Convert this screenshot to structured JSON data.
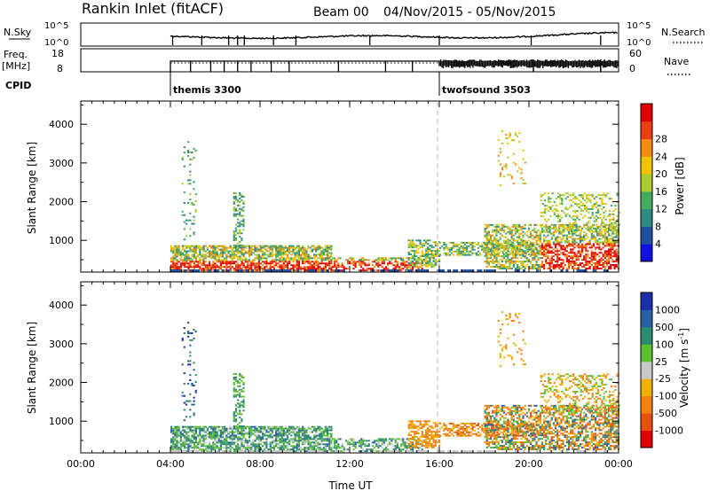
{
  "header": {
    "station": "Rankin Inlet (fitACF)",
    "beam": "Beam 00",
    "dates": "04/Nov/2015 - 05/Nov/2015"
  },
  "top_panels": {
    "nsky_label": "N.Sky",
    "nsky_ticks": [
      "10^5",
      "10^0"
    ],
    "nsearch_label": "N.Search",
    "nsearch_ticks": [
      "10^5",
      "10^0"
    ],
    "freq_label": "Freq.",
    "freq_unit": "[MHz]",
    "freq_ticks": [
      "18",
      "8"
    ],
    "nave_label": "Nave",
    "nave_ticks": [
      "60",
      "0"
    ],
    "cpid_label": "CPID",
    "cpid_programs": [
      {
        "name": "themis 3300",
        "start_hour": 4.0
      },
      {
        "name": "twofsound 3503",
        "start_hour": 16.0
      }
    ]
  },
  "chart_data": [
    {
      "type": "heatmap",
      "quantity": "Power",
      "ylabel": "Slant Range [km]",
      "yticks": [
        1000,
        2000,
        3000,
        4000
      ],
      "ylim": [
        180,
        4600
      ],
      "xlim": [
        0,
        24
      ],
      "colorbar": {
        "label": "Power [dB]",
        "ticks": [
          "4",
          "8",
          "12",
          "16",
          "20",
          "24",
          "28"
        ]
      },
      "regions": [
        {
          "x": [
            4.0,
            16.0
          ],
          "range": [
            250,
            900
          ],
          "note": "continuous echoes, strongest near-range"
        },
        {
          "x": [
            16.0,
            24.0
          ],
          "range": [
            300,
            1500
          ],
          "note": "strong echoes increasing late in day"
        },
        {
          "x": [
            4.5,
            5.0
          ],
          "range": [
            2500,
            3600
          ],
          "note": "sparse far-range scatter"
        },
        {
          "x": [
            6.8,
            7.3
          ],
          "range": [
            1000,
            2200
          ]
        },
        {
          "x": [
            18.5,
            19.5
          ],
          "range": [
            2500,
            3800
          ]
        },
        {
          "x": [
            20.5,
            24.0
          ],
          "range": [
            1200,
            2300
          ]
        }
      ]
    },
    {
      "type": "heatmap",
      "quantity": "Velocity",
      "ylabel": "Slant Range [km]",
      "yticks": [
        1000,
        2000,
        3000,
        4000
      ],
      "ylim": [
        180,
        4600
      ],
      "xlim": [
        0,
        24
      ],
      "xlabel": "Time UT",
      "xticks": [
        "00:00",
        "04:00",
        "08:00",
        "12:00",
        "16:00",
        "20:00",
        "00:00"
      ],
      "colorbar": {
        "label": "Velocity [m s^-1]",
        "ticks": [
          "1000",
          "500",
          "100",
          "25",
          "-25",
          "-100",
          "-500",
          "-1000"
        ]
      }
    }
  ],
  "colors": {
    "power_scale": [
      "#1010e0",
      "#1f4fa0",
      "#2f8a80",
      "#48a860",
      "#a8cc30",
      "#f0c400",
      "#f58a10",
      "#e84010",
      "#e00000"
    ],
    "velocity_scale": [
      "#1a2fa8",
      "#2860a0",
      "#2e8a70",
      "#5cbf30",
      "#c8c8c8",
      "#f0b000",
      "#f08010",
      "#e85010",
      "#e00000"
    ]
  }
}
